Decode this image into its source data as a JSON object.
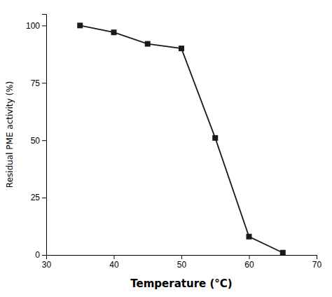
{
  "chart_data": {
    "type": "line",
    "x": [
      35,
      40,
      45,
      50,
      55,
      60,
      65
    ],
    "values": [
      100,
      97,
      92,
      90,
      51,
      8,
      1
    ],
    "xlabel": "Temperature (°C)",
    "ylabel": "Residual PME activity (%)",
    "xlim": [
      30,
      70
    ],
    "ylim": [
      0,
      105
    ],
    "xticks": [
      30,
      40,
      50,
      60,
      70
    ],
    "yticks": [
      0,
      25,
      50,
      75,
      100
    ],
    "color": "#1a1a1a",
    "marker": "square",
    "grid": false
  }
}
